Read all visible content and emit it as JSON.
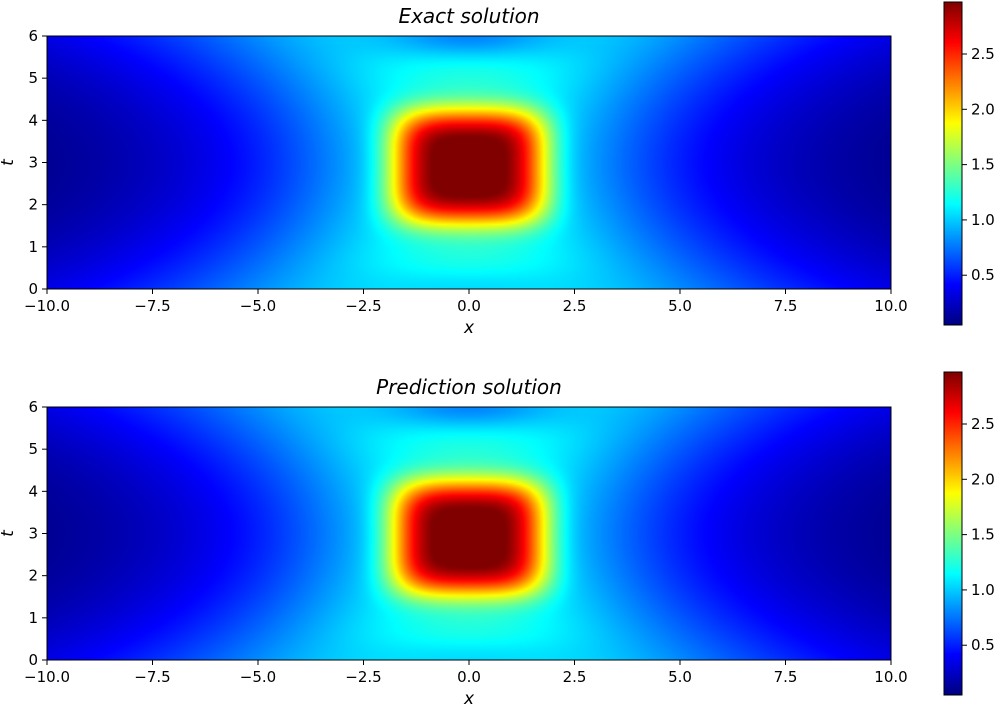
{
  "chart_data": [
    {
      "type": "heatmap",
      "title": "Exact solution",
      "xlabel": "x",
      "ylabel": "t",
      "xlim": [
        -10,
        10
      ],
      "ylim": [
        0,
        6
      ],
      "xticks": [
        "−10.0",
        "−7.5",
        "−5.0",
        "−2.5",
        "0.0",
        "2.5",
        "5.0",
        "7.5",
        "10.0"
      ],
      "xtick_values": [
        -10,
        -7.5,
        -5,
        -2.5,
        0,
        2.5,
        5,
        7.5,
        10
      ],
      "yticks": [
        "0",
        "1",
        "2",
        "3",
        "4",
        "5",
        "6"
      ],
      "ytick_values": [
        0,
        1,
        2,
        3,
        4,
        5,
        6
      ],
      "colormap": "jet",
      "colorbar": {
        "range": [
          0.05,
          2.97
        ],
        "ticks": [
          "0.5",
          "1.0",
          "1.5",
          "2.0",
          "2.5"
        ],
        "tick_values": [
          0.5,
          1.0,
          1.5,
          2.0,
          2.5
        ]
      },
      "field_summary": [
        {
          "x": 0,
          "t": 2.85,
          "value": 2.97
        },
        {
          "x": 0,
          "t": 0,
          "value": 1.2
        },
        {
          "x": 0,
          "t": 6,
          "value": 0.85
        },
        {
          "x": -5,
          "t": 3,
          "value": 1.0
        },
        {
          "x": -10,
          "t": 3,
          "value": 0.05
        }
      ]
    },
    {
      "type": "heatmap",
      "title": "Prediction solution",
      "xlabel": "x",
      "ylabel": "t",
      "xlim": [
        -10,
        10
      ],
      "ylim": [
        0,
        6
      ],
      "xticks": [
        "−10.0",
        "−7.5",
        "−5.0",
        "−2.5",
        "0.0",
        "2.5",
        "5.0",
        "7.5",
        "10.0"
      ],
      "xtick_values": [
        -10,
        -7.5,
        -5,
        -2.5,
        0,
        2.5,
        5,
        7.5,
        10
      ],
      "yticks": [
        "0",
        "1",
        "2",
        "3",
        "4",
        "5",
        "6"
      ],
      "ytick_values": [
        0,
        1,
        2,
        3,
        4,
        5,
        6
      ],
      "colormap": "jet",
      "colorbar": {
        "range": [
          0.05,
          2.97
        ],
        "ticks": [
          "0.5",
          "1.0",
          "1.5",
          "2.0",
          "2.5"
        ],
        "tick_values": [
          0.5,
          1.0,
          1.5,
          2.0,
          2.5
        ]
      },
      "field_summary": [
        {
          "x": 0,
          "t": 2.85,
          "value": 2.97
        },
        {
          "x": 0,
          "t": 0,
          "value": 1.2
        },
        {
          "x": 0,
          "t": 6,
          "value": 0.85
        },
        {
          "x": -5,
          "t": 3,
          "value": 1.0
        },
        {
          "x": -10,
          "t": 3,
          "value": 0.05
        }
      ]
    }
  ]
}
